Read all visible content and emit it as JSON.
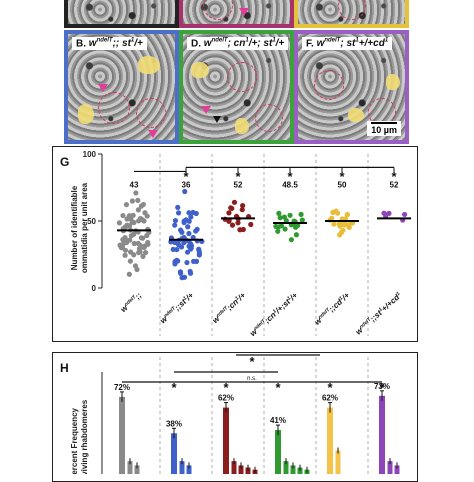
{
  "panels": {
    "B": {
      "letter": "B.",
      "genotype_main": "w",
      "genotype_sup": "ndeIT",
      "genotype_rest": ";; st",
      "genotype_sup2": "1",
      "genotype_end": "/+",
      "border": "#4b6fc9"
    },
    "D": {
      "letter": "D.",
      "genotype_main": "w",
      "genotype_sup": "ndeIT",
      "genotype_rest": "; cn",
      "genotype_sup2": "1",
      "genotype_end": "/+; st",
      "genotype_sup3": "1",
      "genotype_end2": "/+",
      "border": "#3aa33a"
    },
    "F": {
      "letter": "F.",
      "genotype_main": "w",
      "genotype_sup": "ndeIT",
      "genotype_rest": "; st",
      "genotype_sup2": "1",
      "genotype_end": "+/+cd",
      "genotype_sup3": "1",
      "border": "#9a5fc4"
    },
    "scalebar": "10 µm",
    "top_strip_borders": [
      "#222222",
      "#a8326e",
      "#e3c33a"
    ]
  },
  "panel_G": {
    "letter": "G",
    "ylabel_line1": "Number of identifiable",
    "ylabel_line2": "ommatidia per unit area",
    "significance": "*",
    "chart_data": {
      "type": "scatter",
      "ylim": [
        0,
        100
      ],
      "yticks": [
        0,
        50,
        100
      ],
      "groups": [
        {
          "label": "w;;",
          "mean_label": "43",
          "mean": 43,
          "color": "#8a8a8a",
          "sup": "ndeIT"
        },
        {
          "label": "w;;st/+",
          "mean_label": "36",
          "mean": 36,
          "color": "#3f61c9",
          "sup": "ndeIT"
        },
        {
          "label": "w;cn/+",
          "mean_label": "52",
          "mean": 52,
          "color": "#8c1d1d",
          "sup": "ndeIT"
        },
        {
          "label": "w;cn/+; st/+",
          "mean_label": "48.5",
          "mean": 48.5,
          "color": "#2f9a2f",
          "sup": "ndeIT"
        },
        {
          "label": "w;;cd/+",
          "mean_label": "50",
          "mean": 50,
          "color": "#e8bd3a",
          "sup": "ndeIT"
        },
        {
          "label": "w;st+/+cd",
          "mean_label": "52",
          "mean": 52,
          "color": "#8e45b8",
          "sup": "ndeIT"
        }
      ],
      "xlabels": [
        [
          "w",
          "ndeIT",
          ";;"
        ],
        [
          "w",
          "ndeIT",
          ";;st",
          "1",
          "/+"
        ],
        [
          "w",
          "ndeIT",
          ";cn",
          "1",
          "/+"
        ],
        [
          "w",
          "ndeIT",
          ";cn",
          "1",
          "/+;",
          "st",
          "1",
          "/+"
        ],
        [
          "w",
          "ndeIT",
          ";;cd",
          "1",
          "/+"
        ],
        [
          "w",
          "ndeIT",
          ";;st",
          "1",
          "+/+cd",
          "1"
        ]
      ]
    }
  },
  "panel_H": {
    "letter": "H",
    "ylabel_line1": "Percent Frequency",
    "ylabel_line2": "surviving rhabdomeres",
    "ns_label": "n.s.",
    "significance": "*",
    "chart_data": {
      "type": "bar",
      "groups": [
        {
          "pct_label": "72%",
          "peak": 72,
          "color": "#8a8a8a"
        },
        {
          "pct_label": "38%",
          "peak": 38,
          "color": "#3f61c9"
        },
        {
          "pct_label": "62%",
          "peak": 62,
          "color": "#8c1d1d"
        },
        {
          "pct_label": "41%",
          "peak": 41,
          "color": "#2f9a2f"
        },
        {
          "pct_label": "62%",
          "peak": 62,
          "color": "#f5c34a"
        },
        {
          "pct_label": "73%",
          "peak": 73,
          "color": "#8e45b8"
        }
      ]
    }
  }
}
